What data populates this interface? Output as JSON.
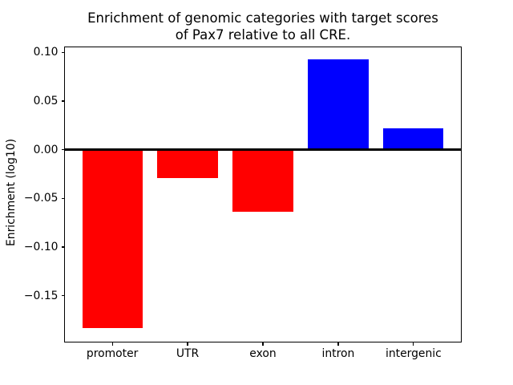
{
  "figure": {
    "background": "#ffffff",
    "axis_color": "#000000"
  },
  "chart_data": {
    "type": "bar",
    "title": "Enrichment of genomic categories with target scores\nof Pax7 relative to all CRE.",
    "xlabel": "",
    "ylabel": "Enrichment (log10)",
    "categories": [
      "promoter",
      "UTR",
      "exon",
      "intron",
      "intergenic"
    ],
    "values": [
      -0.183,
      -0.029,
      -0.064,
      0.093,
      0.022
    ],
    "bar_colors": [
      "#ff0000",
      "#ff0000",
      "#ff0000",
      "#0000ff",
      "#0000ff"
    ],
    "negative_color": "#ff0000",
    "positive_color": "#0000ff",
    "bar_width": 0.8,
    "ylim": [
      -0.198,
      0.106
    ],
    "xlim": [
      -0.64,
      4.64
    ],
    "yticks": [
      0.1,
      0.05,
      0.0,
      -0.05,
      -0.1,
      -0.15
    ],
    "ytick_labels": [
      "0.10",
      "0.05",
      "0.00",
      "−0.05",
      "−0.10",
      "−0.15"
    ],
    "zero_line": true,
    "zero_line_color": "#000000",
    "grid": false,
    "legend": false
  }
}
